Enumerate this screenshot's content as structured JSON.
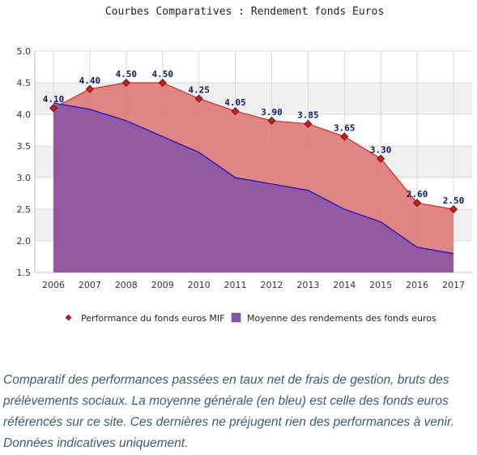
{
  "chart_data": {
    "type": "area",
    "title": "Courbes Comparatives : Rendement fonds Euros",
    "categories": [
      "2006",
      "2007",
      "2008",
      "2009",
      "2010",
      "2011",
      "2012",
      "2013",
      "2014",
      "2015",
      "2016",
      "2017"
    ],
    "series": [
      {
        "name": "Performance du fonds euros MIF",
        "values": [
          4.1,
          4.4,
          4.5,
          4.5,
          4.25,
          4.05,
          3.9,
          3.85,
          3.65,
          3.3,
          2.6,
          2.5
        ],
        "data_labels": [
          "4.10",
          "4.40",
          "4.50",
          "4.50",
          "4.25",
          "4.05",
          "3.90",
          "3.85",
          "3.65",
          "3.30",
          "2.60",
          "2.50"
        ],
        "fill_color": "#dc7a78",
        "line_color": "#e8201a",
        "marker_color": "#c42020"
      },
      {
        "name": "Moyenne des rendements des fonds euros",
        "values": [
          4.18,
          4.08,
          3.9,
          3.65,
          3.4,
          3.0,
          2.9,
          2.8,
          2.5,
          2.3,
          1.9,
          1.8
        ],
        "fill_color": "#8a55a2",
        "line_color": "#1a00e0"
      }
    ],
    "y_ticks": [
      "5.0",
      "4.5",
      "4.0",
      "3.5",
      "3.0",
      "2.5",
      "2.0",
      "1.5"
    ],
    "ylim": [
      1.5,
      5.0
    ],
    "legend_position": "bottom",
    "grid": "alternating horizontal bands"
  },
  "caption": "Comparatif des performances passées en taux net de frais de gestion, bruts des prélèvements sociaux. La moyenne générale (en bleu) est celle des fonds euros référencés sur ce site. Ces dernières ne préjugent rien des performances à venir. Données indicatives uniquement."
}
